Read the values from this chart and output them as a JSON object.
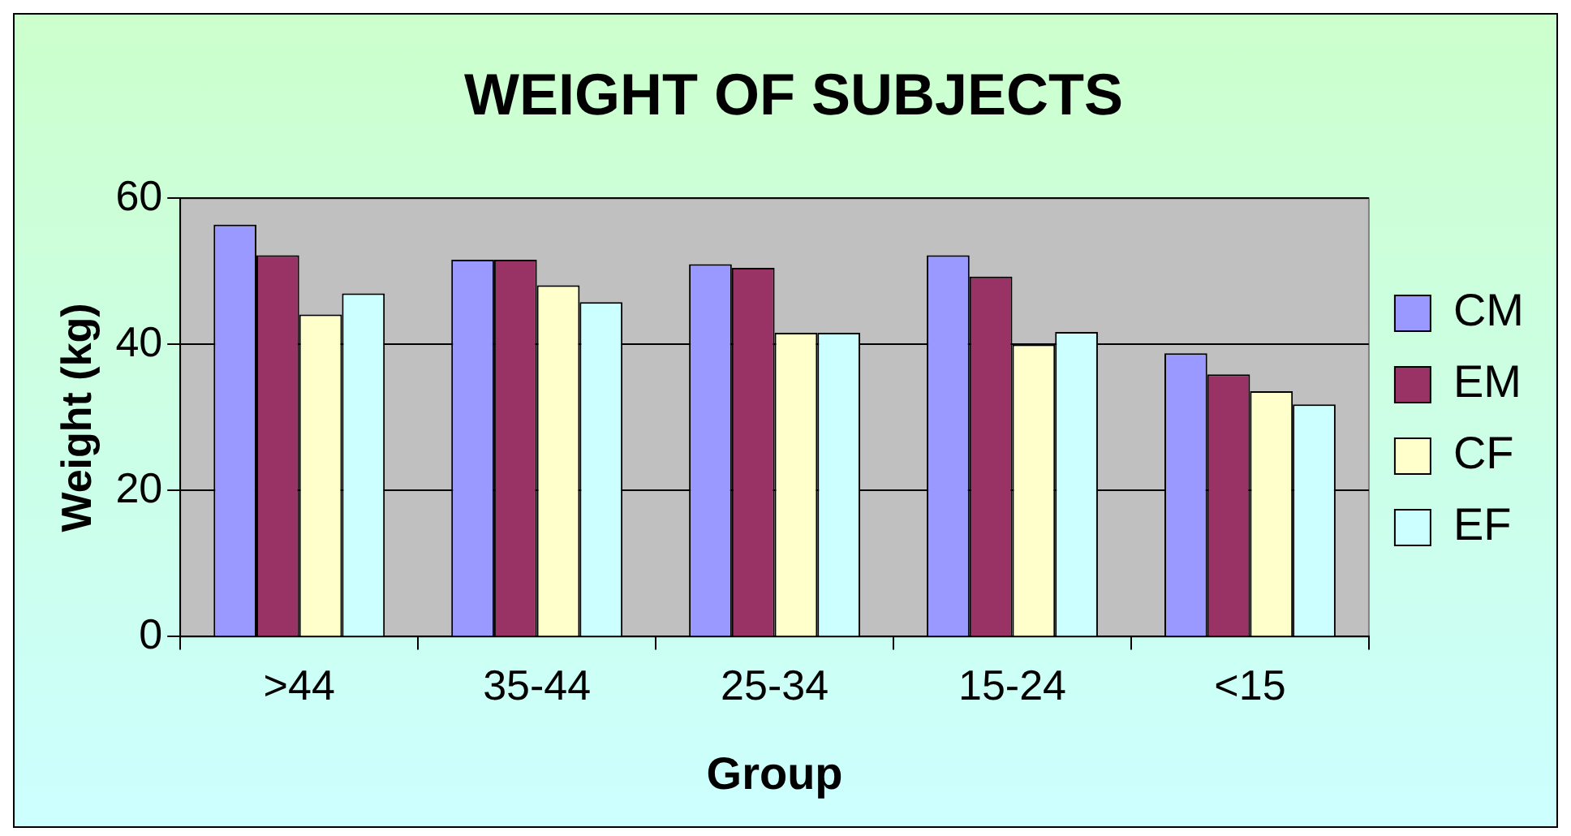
{
  "chart_data": {
    "type": "bar",
    "title": "WEIGHT OF SUBJECTS",
    "xlabel": "Group",
    "ylabel": "Weight (kg)",
    "categories": [
      ">44",
      "35-44",
      "25-34",
      "15-24",
      "<15"
    ],
    "series": [
      {
        "name": "CM",
        "color": "#9999ff",
        "values": [
          56.4,
          51.6,
          51.0,
          52.2,
          38.8
        ]
      },
      {
        "name": "EM",
        "color": "#993366",
        "values": [
          52.2,
          51.6,
          50.5,
          49.3,
          35.9
        ]
      },
      {
        "name": "CF",
        "color": "#ffffcc",
        "values": [
          44.1,
          48.1,
          41.6,
          40.0,
          33.6
        ]
      },
      {
        "name": "EF",
        "color": "#ccffff",
        "values": [
          47.0,
          45.8,
          41.6,
          41.7,
          31.8
        ]
      }
    ],
    "ylim": [
      0,
      60
    ],
    "yticks": [
      0,
      20,
      40,
      60
    ],
    "grid": "y",
    "legend": "right"
  }
}
